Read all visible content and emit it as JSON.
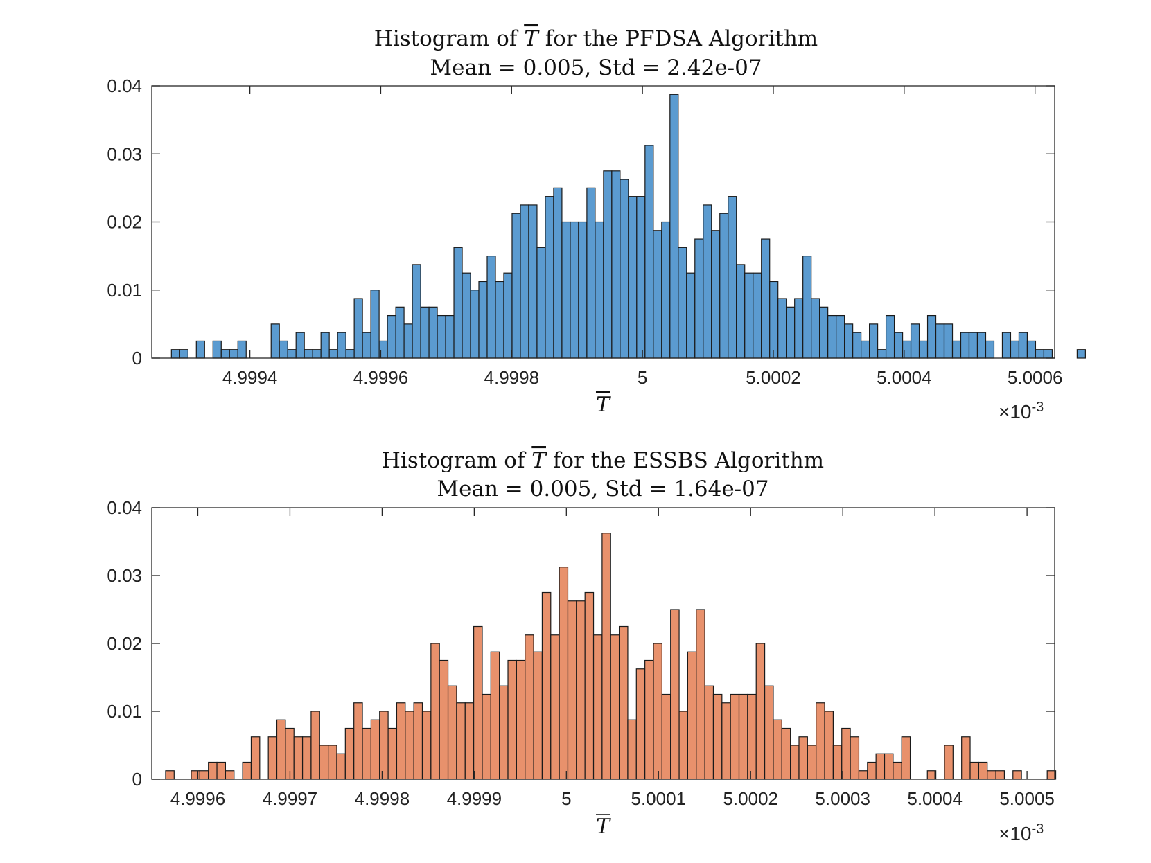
{
  "chart_data": [
    {
      "type": "bar",
      "title_prefix": "Histogram of",
      "title_symbol": "T",
      "title_suffix": "for the PFDSA Algorithm",
      "subtitle": "Mean = 0.005, Std = 2.42e-07",
      "xlabel": "T",
      "x_exponent_prefix": "×10",
      "x_exponent": "-3",
      "ylabel": "",
      "bar_color": "#5B9BD0",
      "xlim": [
        4.99925,
        5.00063
      ],
      "ylim": [
        0,
        0.04
      ],
      "xticks": [
        4.9994,
        4.9996,
        4.9998,
        5,
        5.0002,
        5.0004,
        5.0006
      ],
      "xtick_labels": [
        "4.9994",
        "4.9996",
        "4.9998",
        "5",
        "5.0002",
        "5.0004",
        "5.0006"
      ],
      "yticks": [
        0,
        0.01,
        0.02,
        0.03,
        0.04
      ],
      "ytick_labels": [
        "0",
        "0.01",
        "0.02",
        "0.03",
        "0.04"
      ],
      "bin_start": 4.99928,
      "bin_width": 1.27e-05,
      "values": [
        0.00125,
        0.00125,
        0,
        0.0025,
        0,
        0.0025,
        0.00125,
        0.00125,
        0.0025,
        0,
        0,
        0,
        0.005,
        0.0025,
        0.00125,
        0.00375,
        0.00125,
        0.00125,
        0.00375,
        0.00125,
        0.00375,
        0.00125,
        0.00875,
        0.00375,
        0.01,
        0.0025,
        0.00625,
        0.0075,
        0.005,
        0.01375,
        0.0075,
        0.0075,
        0.00625,
        0.00625,
        0.01625,
        0.0125,
        0.01,
        0.01125,
        0.015,
        0.01125,
        0.0125,
        0.02125,
        0.0225,
        0.0225,
        0.01625,
        0.02375,
        0.025,
        0.02,
        0.02,
        0.02,
        0.025,
        0.02,
        0.0275,
        0.0275,
        0.02625,
        0.02375,
        0.02375,
        0.03125,
        0.01875,
        0.02,
        0.03875,
        0.01625,
        0.0125,
        0.0175,
        0.0225,
        0.01875,
        0.02125,
        0.02375,
        0.01375,
        0.0125,
        0.0125,
        0.0175,
        0.01125,
        0.00875,
        0.0075,
        0.00875,
        0.015,
        0.00875,
        0.0075,
        0.00625,
        0.00625,
        0.005,
        0.00375,
        0.0025,
        0.005,
        0.00125,
        0.00625,
        0.00375,
        0.0025,
        0.005,
        0.0025,
        0.00625,
        0.005,
        0.005,
        0.0025,
        0.00375,
        0.00375,
        0.00375,
        0.0025,
        0,
        0.00375,
        0.0025,
        0.00375,
        0.0025,
        0.00125,
        0.00125,
        0,
        0,
        0,
        0.00125
      ]
    },
    {
      "type": "bar",
      "title_prefix": "Histogram of",
      "title_symbol": "T",
      "title_suffix": "for the ESSBS Algorithm",
      "subtitle": "Mean = 0.005, Std = 1.64e-07",
      "xlabel": "T",
      "x_exponent_prefix": "×10",
      "x_exponent": "-3",
      "ylabel": "",
      "bar_color": "#E8916C",
      "xlim": [
        4.99955,
        5.00053
      ],
      "ylim": [
        0,
        0.04
      ],
      "xticks": [
        4.9996,
        4.9997,
        4.9998,
        4.9999,
        5,
        5.0001,
        5.0002,
        5.0003,
        5.0004,
        5.0005
      ],
      "xtick_labels": [
        "4.9996",
        "4.9997",
        "4.9998",
        "4.9999",
        "5",
        "5.0001",
        "5.0002",
        "5.0003",
        "5.0004",
        "5.0005"
      ],
      "yticks": [
        0,
        0.01,
        0.02,
        0.03,
        0.04
      ],
      "ytick_labels": [
        "0",
        "0.01",
        "0.02",
        "0.03",
        "0.04"
      ],
      "bin_start": 4.999565,
      "bin_width": 9.29e-06,
      "values": [
        0.00125,
        0,
        0,
        0.00125,
        0.00125,
        0.0025,
        0.0025,
        0.00125,
        0,
        0.0025,
        0.00625,
        0,
        0.00625,
        0.00875,
        0.0075,
        0.00625,
        0.00625,
        0.01,
        0.005,
        0.005,
        0.00375,
        0.0075,
        0.01125,
        0.0075,
        0.00875,
        0.01,
        0.0075,
        0.01125,
        0.01,
        0.01125,
        0.01,
        0.02,
        0.0175,
        0.01375,
        0.01125,
        0.01125,
        0.0225,
        0.0125,
        0.01875,
        0.01375,
        0.0175,
        0.0175,
        0.02125,
        0.01875,
        0.0275,
        0.02125,
        0.03125,
        0.02625,
        0.02625,
        0.0275,
        0.02125,
        0.03625,
        0.02125,
        0.0225,
        0.00875,
        0.01625,
        0.0175,
        0.02,
        0.0125,
        0.025,
        0.01,
        0.01875,
        0.025,
        0.01375,
        0.0125,
        0.01125,
        0.0125,
        0.0125,
        0.0125,
        0.02,
        0.01375,
        0.00875,
        0.0075,
        0.005,
        0.00625,
        0.005,
        0.01125,
        0.01,
        0.005,
        0.0075,
        0.00625,
        0.00125,
        0.0025,
        0.00375,
        0.00375,
        0.0025,
        0.00625,
        0,
        0,
        0.00125,
        0,
        0.005,
        0,
        0.00625,
        0.0025,
        0.0025,
        0.00125,
        0.00125,
        0,
        0.00125,
        0,
        0,
        0,
        0.00125
      ]
    }
  ]
}
